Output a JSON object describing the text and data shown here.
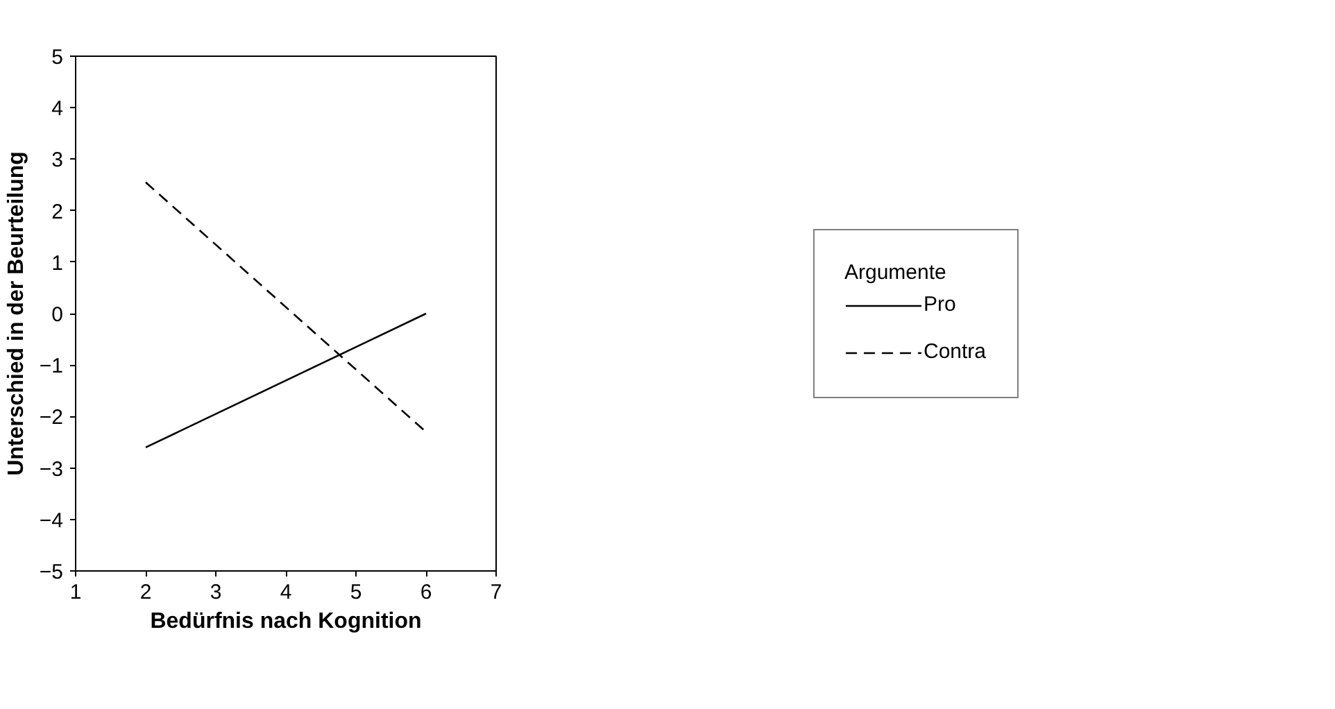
{
  "chart_data": {
    "type": "line",
    "xlabel": "Bedürfnis nach Kognition",
    "ylabel": "Unterschied in der Beurteilung",
    "legend_title": "Argumente",
    "x": [
      2,
      6
    ],
    "series": [
      {
        "name": "Pro",
        "color": "#000000",
        "values": [
          -2.6,
          0
        ],
        "line_style": "solid"
      },
      {
        "name": "Contra",
        "color": "#000000",
        "values": [
          2.55,
          -2.3
        ],
        "line_style": "dashed"
      }
    ],
    "xlim": [
      1,
      7
    ],
    "xticks": [
      1,
      2,
      3,
      4,
      5,
      6,
      7
    ],
    "ylim": [
      -5,
      5
    ],
    "yticks": [
      -5,
      -4,
      -3,
      -2,
      -1,
      0,
      1,
      2,
      3,
      4,
      5
    ],
    "grid": false,
    "legend": "right",
    "marker": "none"
  }
}
